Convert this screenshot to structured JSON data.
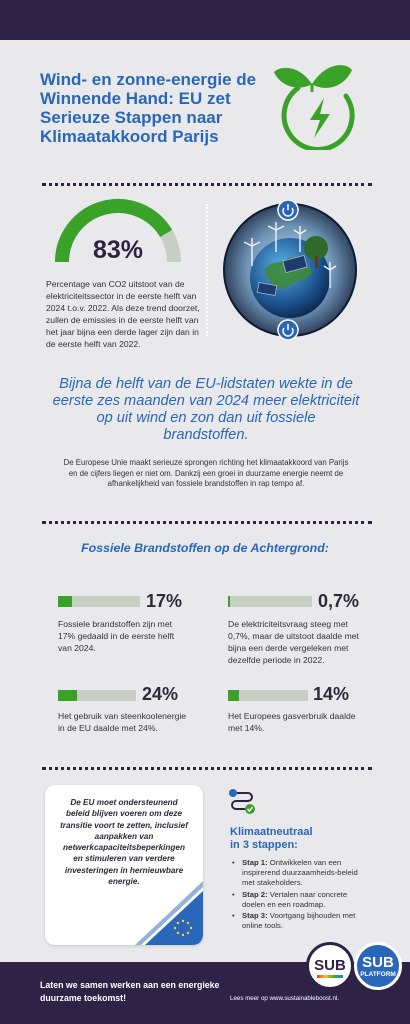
{
  "title": "Wind- en zonne-energie de Winnende Hand: EU zet Serieuze Stappen naar Klimaatakkoord Parijs",
  "gauge": {
    "value_label": "83%",
    "fraction": 0.83,
    "text": "Percentage van CO2 uitstoot van de elektriciteitssector in de eerste helft van 2024 t.o.v. 2022. Als deze trend doorzet, zullen de emissies in de eerste helft van het jaar bijna een derde lager zijn dan in de eerste helft van 2022."
  },
  "quote": "Bijna de helft van de EU-lidstaten wekte in de eerste zes maanden van 2024 meer elektriciteit op uit wind en zon dan uit fossiele brandstoffen.",
  "paragraph": "De Europese Unie maakt serieuze sprongen richting het klimaatakkoord van Parijs en de cijfers liegen er niet om. Dankzij een groei in duurzame energie neemt de afhankelijkheid van fossiele brandstoffen in rap tempo af.",
  "section_title": "Fossiele Brandstoffen op de Achtergrond:",
  "stats": [
    {
      "value": "17%",
      "fraction": 0.17,
      "text": "Fossiele brandstoffen zijn met 17% gedaald in de eerste helft van 2024."
    },
    {
      "value": "0,7%",
      "fraction": 0.007,
      "text": "De elektriciteitsvraag steeg met 0,7%, maar de uitstoot daalde met bijna een derde vergeleken met dezelfde periode in 2022."
    },
    {
      "value": "24%",
      "fraction": 0.24,
      "text": "Het gebruik van steenkoolenergie in de EU daalde met 24%."
    },
    {
      "value": "14%",
      "fraction": 0.14,
      "text": "Het Europees gasverbruik daalde met 14%."
    }
  ],
  "card_text": "De EU moet ondersteunend beleid blijven voeren om deze transitie voort te zetten, inclusief aanpakken van netwerkcapaciteitsbeperkingen en stimuleren van verdere investeringen in hernieuwbare energie.",
  "steps": {
    "title_line1": "Klimaatneutraal",
    "title_line2": "in 3 stappen:",
    "items": [
      {
        "label": "Stap 1:",
        "text": "Ontwikkelen van een inspirerend duurzaamheids-beleid met stakeholders."
      },
      {
        "label": "Stap 2:",
        "text": "Vertalen naar concrete doelen en een roadmap."
      },
      {
        "label": "Stap 3:",
        "text": "Voortgang bijhouden met online tools."
      }
    ]
  },
  "logos": [
    {
      "word": "SUB",
      "sub": ""
    },
    {
      "word": "SUB",
      "sub": "PLATFORM"
    }
  ],
  "footer": {
    "tagline": "Laten we samen werken aan een energieke duurzame toekomst!",
    "link": "Lees meer op www.sustainableboost.nl."
  },
  "colors": {
    "navy": "#2e2347",
    "blue": "#2a67b8",
    "green": "#3aa229",
    "bar_bg": "#c7cec3",
    "background": "#e9e9ec"
  },
  "icons": [
    "leaf-bolt-icon",
    "earth-globe-image",
    "power-icon",
    "steps-icon",
    "eu-flag-icon"
  ]
}
